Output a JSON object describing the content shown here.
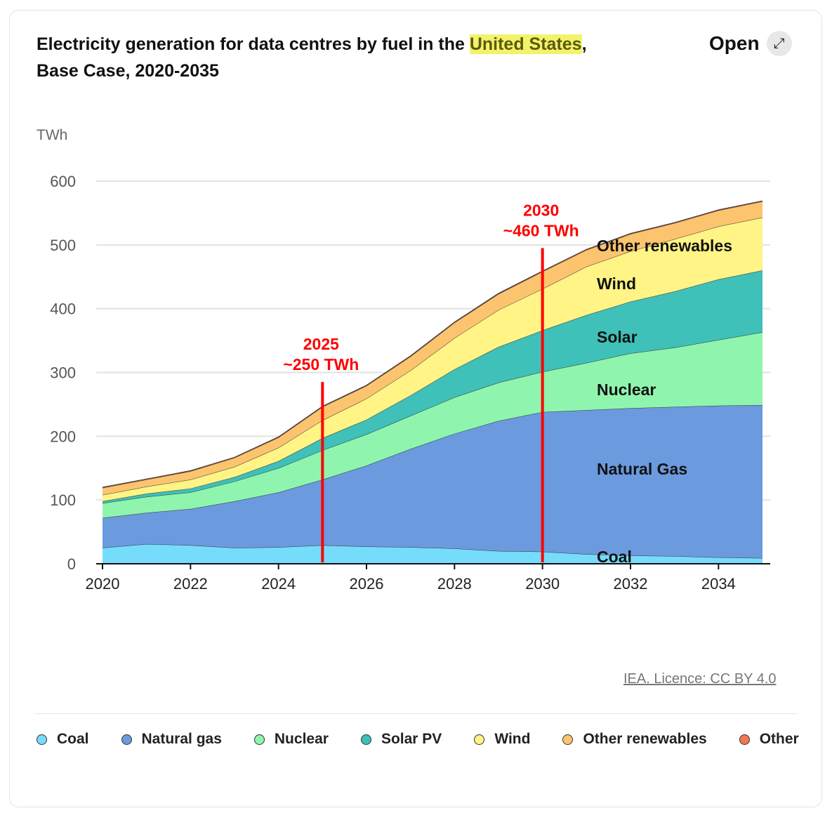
{
  "header": {
    "title_before": "Electricity generation for data centres by fuel in the ",
    "title_highlight": "United States",
    "title_after": ",",
    "title_line2": "Base Case, 2020-2035",
    "open_label": "Open",
    "open_icon": "expand-arrow-icon"
  },
  "source": "IEA. Licence: CC BY 4.0",
  "chart_data": {
    "type": "area",
    "stacked": true,
    "title": "Electricity generation for data centres by fuel in the United States, Base Case, 2020-2035",
    "ylabel": "TWh",
    "xlabel": "",
    "ylim": [
      0,
      600
    ],
    "yticks": [
      "0",
      "100",
      "200",
      "300",
      "400",
      "500",
      "600"
    ],
    "xticks": [
      "2020",
      "2022",
      "2024",
      "2026",
      "2028",
      "2030",
      "2032",
      "2034"
    ],
    "grid": true,
    "x": [
      2020,
      2021,
      2022,
      2023,
      2024,
      2025,
      2026,
      2027,
      2028,
      2029,
      2030,
      2031,
      2032,
      2033,
      2034,
      2035
    ],
    "series": [
      {
        "name": "Coal",
        "label": "Coal",
        "color": "#76dcfb",
        "values": [
          25,
          31,
          29,
          25,
          26,
          29,
          27,
          26,
          24,
          20,
          19,
          15,
          13,
          12,
          10,
          9
        ]
      },
      {
        "name": "Natural gas",
        "label": "Natural Gas",
        "color": "#6b9ade",
        "values": [
          47,
          49,
          57,
          73,
          86,
          103,
          127,
          154,
          180,
          204,
          219,
          226,
          231,
          234,
          238,
          240
        ]
      },
      {
        "name": "Nuclear",
        "label": "Nuclear",
        "color": "#8ff5ae",
        "values": [
          23,
          25,
          26,
          31,
          38,
          46,
          49,
          52,
          57,
          60,
          63,
          74,
          86,
          93,
          103,
          114
        ]
      },
      {
        "name": "Solar PV",
        "label": "Solar",
        "color": "#3fc0b8",
        "values": [
          3,
          5,
          6,
          7,
          11,
          19,
          23,
          32,
          44,
          56,
          65,
          75,
          81,
          88,
          95,
          97
        ]
      },
      {
        "name": "Wind",
        "label": "Wind",
        "color": "#fff485",
        "values": [
          10,
          11,
          14,
          16,
          21,
          28,
          33,
          39,
          49,
          58,
          65,
          76,
          79,
          82,
          83,
          83
        ]
      },
      {
        "name": "Other renewables",
        "label": "Other renewables",
        "color": "#fdc46f",
        "values": [
          11,
          11,
          13,
          14,
          16,
          21,
          20,
          22,
          24,
          25,
          27,
          26,
          27,
          25,
          25,
          25
        ]
      },
      {
        "name": "Other",
        "label": "",
        "color": "#f4784f",
        "values": [
          1,
          1,
          1,
          1,
          1,
          1,
          1,
          1,
          1,
          1,
          1,
          1,
          1,
          1,
          1,
          1
        ]
      }
    ],
    "annotations": [
      {
        "x": 2025,
        "year": "2025",
        "text": "~250 TWh",
        "top_value": 285,
        "color": "#ff0000"
      },
      {
        "x": 2030,
        "year": "2030",
        "text": "~460 TWh",
        "top_value": 495,
        "color": "#ff0000"
      }
    ],
    "legend_position": "bottom"
  }
}
